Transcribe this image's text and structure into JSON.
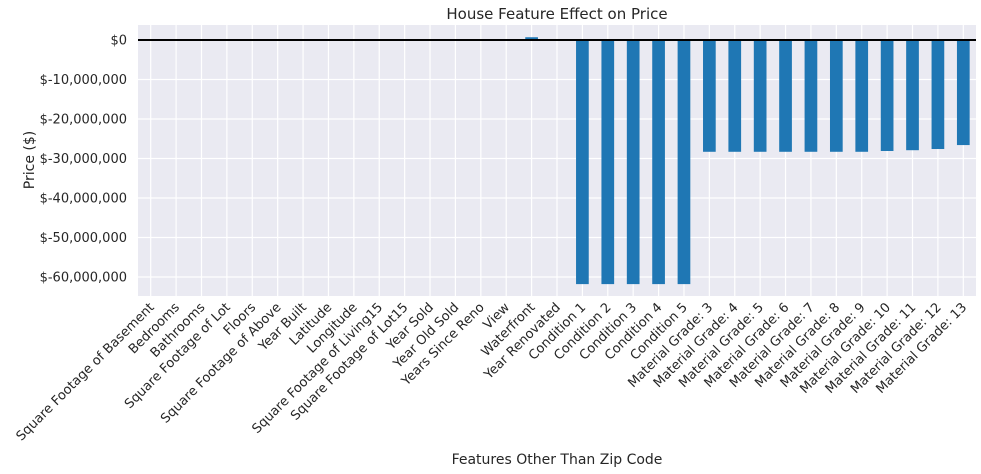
{
  "chart_data": {
    "type": "bar",
    "title": "House Feature Effect on Price",
    "xlabel": "Features Other Than Zip Code",
    "ylabel": "Price ($)",
    "ylim": [
      -65000000,
      4000000
    ],
    "yticks": [
      0,
      -10000000,
      -20000000,
      -30000000,
      -40000000,
      -50000000,
      -60000000
    ],
    "ytick_labels": [
      "$0",
      "$-10,000,000",
      "$-20,000,000",
      "$-30,000,000",
      "$-40,000,000",
      "$-50,000,000",
      "$-60,000,000"
    ],
    "grid": true,
    "zero_line": true,
    "bar_color": "#1f77b4",
    "background_color": "#eaeaf2",
    "categories": [
      "Square Footage of Basement",
      "Bedrooms",
      "Bathrooms",
      "Square Footage of Lot",
      "Floors",
      "Square Footage of Above",
      "Year Built",
      "Latitude",
      "Longitude",
      "Square Footage of Living15",
      "Square Footage of Lot15",
      "Year Sold",
      "Year Old Sold",
      "Years Since Reno",
      "View",
      "Waterfront",
      "Year Renovated",
      "Condition 1",
      "Condition 2",
      "Condition 3",
      "Condition 4",
      "Condition 5",
      "Material Grade:  3",
      "Material Grade:  4",
      "Material Grade:  5",
      "Material Grade:  6",
      "Material Grade:  7",
      "Material Grade:  8",
      "Material Grade:  9",
      "Material Grade:  10",
      "Material Grade:  11",
      "Material Grade:  12",
      "Material Grade:  13"
    ],
    "values": [
      0,
      0,
      0,
      0,
      0,
      0,
      0,
      0,
      0,
      0,
      0,
      0,
      0,
      0,
      0,
      700000,
      0,
      -61800000,
      -61800000,
      -61800000,
      -61800000,
      -61800000,
      -28300000,
      -28300000,
      -28300000,
      -28300000,
      -28300000,
      -28300000,
      -28300000,
      -28100000,
      -27900000,
      -27600000,
      -26600000
    ]
  }
}
